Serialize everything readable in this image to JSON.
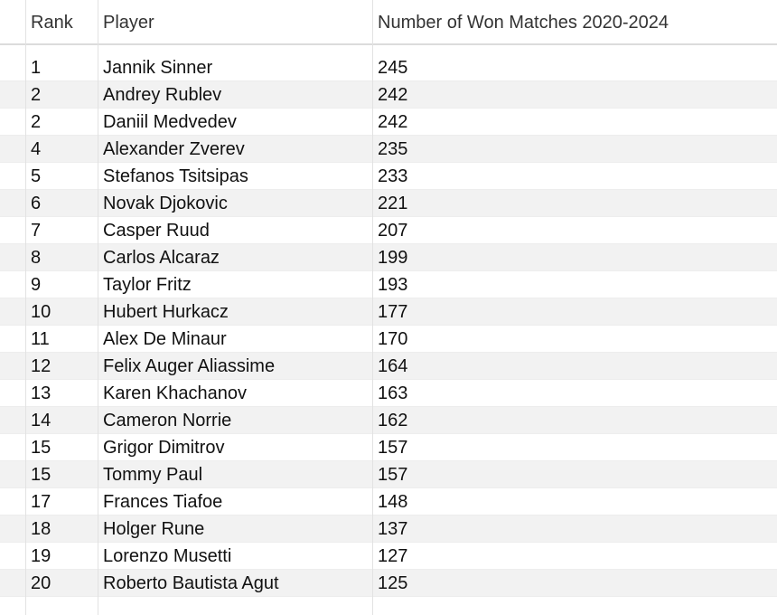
{
  "table": {
    "headers": {
      "rank": "Rank",
      "player": "Player",
      "won": "Number of Won Matches 2020-2024"
    },
    "rows": [
      {
        "rank": "1",
        "player": "Jannik Sinner",
        "won": "245"
      },
      {
        "rank": "2",
        "player": "Andrey Rublev",
        "won": "242"
      },
      {
        "rank": "2",
        "player": "Daniil Medvedev",
        "won": "242"
      },
      {
        "rank": "4",
        "player": "Alexander Zverev",
        "won": "235"
      },
      {
        "rank": "5",
        "player": "Stefanos Tsitsipas",
        "won": "233"
      },
      {
        "rank": "6",
        "player": "Novak Djokovic",
        "won": "221"
      },
      {
        "rank": "7",
        "player": "Casper Ruud",
        "won": "207"
      },
      {
        "rank": "8",
        "player": "Carlos Alcaraz",
        "won": "199"
      },
      {
        "rank": "9",
        "player": "Taylor Fritz",
        "won": "193"
      },
      {
        "rank": "10",
        "player": "Hubert Hurkacz",
        "won": "177"
      },
      {
        "rank": "11",
        "player": "Alex De Minaur",
        "won": "170"
      },
      {
        "rank": "12",
        "player": "Felix Auger Aliassime",
        "won": "164"
      },
      {
        "rank": "13",
        "player": "Karen Khachanov",
        "won": "163"
      },
      {
        "rank": "14",
        "player": "Cameron Norrie",
        "won": "162"
      },
      {
        "rank": "15",
        "player": "Grigor Dimitrov",
        "won": "157"
      },
      {
        "rank": "15",
        "player": "Tommy Paul",
        "won": "157"
      },
      {
        "rank": "17",
        "player": "Frances Tiafoe",
        "won": "148"
      },
      {
        "rank": "18",
        "player": "Holger Rune",
        "won": "137"
      },
      {
        "rank": "19",
        "player": "Lorenzo Musetti",
        "won": "127"
      },
      {
        "rank": "20",
        "player": "Roberto Bautista Agut",
        "won": "125"
      }
    ]
  }
}
